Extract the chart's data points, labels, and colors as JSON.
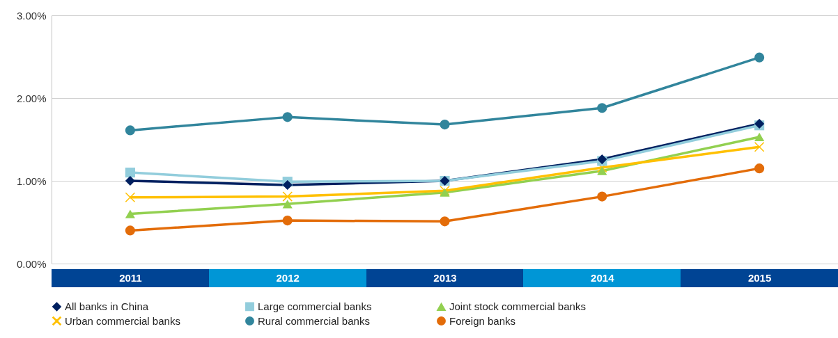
{
  "chart_data": {
    "type": "line",
    "categories": [
      "2011",
      "2012",
      "2013",
      "2014",
      "2015"
    ],
    "series": [
      {
        "name": "All banks in China",
        "color": "#002060",
        "marker": "diamond",
        "values": [
          1.0,
          0.95,
          1.0,
          1.26,
          1.69
        ]
      },
      {
        "name": "Large commercial banks",
        "color": "#92cddc",
        "marker": "square",
        "values": [
          1.1,
          0.99,
          1.0,
          1.24,
          1.67
        ]
      },
      {
        "name": "Joint stock commercial banks",
        "color": "#92d050",
        "marker": "triangle",
        "values": [
          0.6,
          0.72,
          0.86,
          1.12,
          1.53
        ]
      },
      {
        "name": "Urban commercial banks",
        "color": "#ffc000",
        "marker": "cross",
        "values": [
          0.8,
          0.81,
          0.88,
          1.16,
          1.41
        ]
      },
      {
        "name": "Rural commercial banks",
        "color": "#31859c",
        "marker": "circle",
        "values": [
          1.61,
          1.77,
          1.68,
          1.88,
          2.49
        ]
      },
      {
        "name": "Foreign banks",
        "color": "#e36c09",
        "marker": "circle",
        "values": [
          0.4,
          0.52,
          0.51,
          0.81,
          1.15
        ]
      }
    ],
    "ylim": [
      0,
      3
    ],
    "yticks": [
      {
        "value": 0,
        "label": "0.00%"
      },
      {
        "value": 1,
        "label": "1.00%"
      },
      {
        "value": 2,
        "label": "2.00%"
      },
      {
        "value": 3,
        "label": "3.00%"
      }
    ],
    "grid": "y",
    "legend": "bottom",
    "line_style": "solid"
  }
}
